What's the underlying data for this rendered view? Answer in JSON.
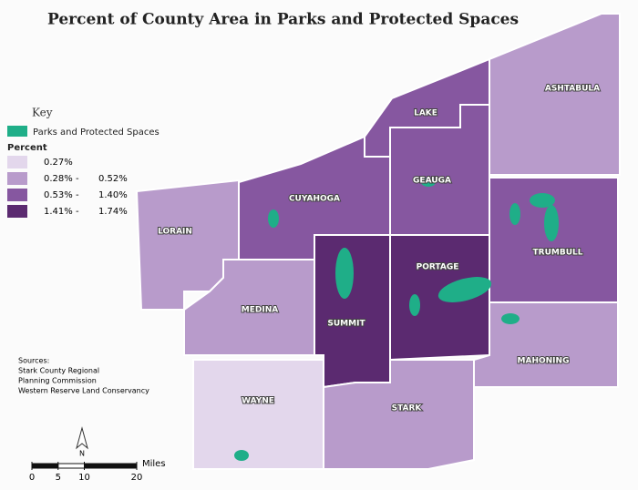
{
  "title": "Percent of County Area in Parks and Protected Spaces",
  "key": {
    "title": "Key",
    "parks": "Parks and Protected Spaces",
    "parks_color": "#1fae88",
    "percent_title": "Percent",
    "classes": [
      {
        "from": "0.27%",
        "to": null,
        "color": "#e3d7ec"
      },
      {
        "from": "0.28% -",
        "to": "0.52%",
        "color": "#b89bcb"
      },
      {
        "from": "0.53% -",
        "to": "1.40%",
        "color": "#8657a0"
      },
      {
        "from": "1.41% -",
        "to": "1.74%",
        "color": "#5b2a70"
      }
    ]
  },
  "counties": [
    {
      "name": "ASHTABULA",
      "class": 1
    },
    {
      "name": "LAKE",
      "class": 2
    },
    {
      "name": "GEAUGA",
      "class": 2
    },
    {
      "name": "CUYAHOGA",
      "class": 2
    },
    {
      "name": "LORAIN",
      "class": 1
    },
    {
      "name": "MEDINA",
      "class": 1
    },
    {
      "name": "SUMMIT",
      "class": 3
    },
    {
      "name": "PORTAGE",
      "class": 3
    },
    {
      "name": "TRUMBULL",
      "class": 2
    },
    {
      "name": "MAHONING",
      "class": 1
    },
    {
      "name": "STARK",
      "class": 1
    },
    {
      "name": "WAYNE",
      "class": 0
    }
  ],
  "sources": [
    "Sources:",
    "Stark County Regional",
    "Planning Commission",
    "Western Reserve Land Conservancy"
  ],
  "north": "N",
  "scale": {
    "ticks": [
      0,
      5,
      10,
      20
    ],
    "unit": "Miles"
  }
}
